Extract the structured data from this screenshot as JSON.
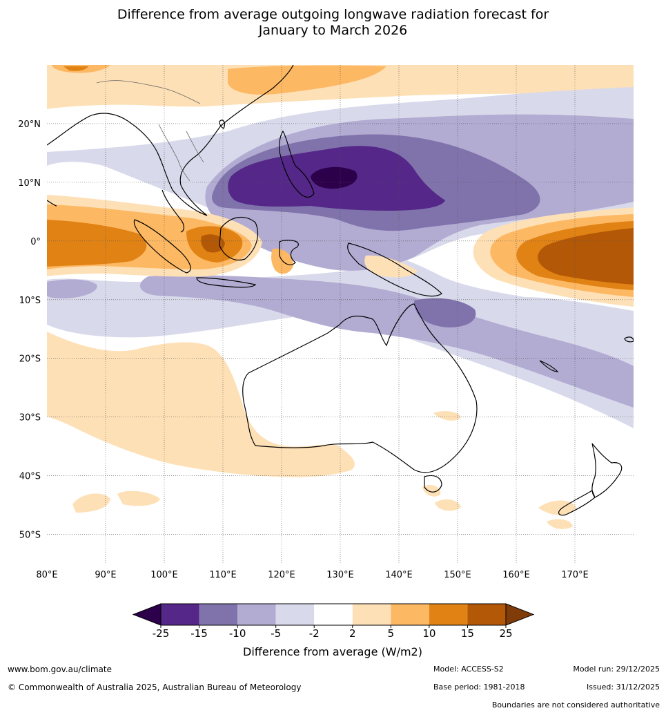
{
  "title": {
    "line1": "Difference from average outgoing longwave radiation forecast for",
    "line2": "January to March 2026"
  },
  "map": {
    "lon_labels": [
      "80°E",
      "90°E",
      "100°E",
      "110°E",
      "120°E",
      "130°E",
      "140°E",
      "150°E",
      "160°E",
      "170°E"
    ],
    "lat_labels": [
      "20°N",
      "10°N",
      "0°",
      "10°S",
      "20°S",
      "30°S",
      "40°S",
      "50°S"
    ],
    "lon_values": [
      80,
      90,
      100,
      110,
      120,
      130,
      140,
      150,
      160,
      170
    ],
    "lat_values": [
      20,
      10,
      0,
      -10,
      -20,
      -30,
      -40,
      -50
    ],
    "lon_range": [
      80,
      180
    ],
    "lat_range": [
      -55,
      30
    ]
  },
  "legend": {
    "title": "Difference from average (W/m2)",
    "ticks": [
      "-25",
      "-15",
      "-10",
      "-5",
      "-2",
      "2",
      "5",
      "10",
      "15",
      "25"
    ],
    "colors": [
      "#2d004b",
      "#542788",
      "#8073ac",
      "#b2abd2",
      "#d8daeb",
      "#ffffff",
      "#fee0b6",
      "#fdb863",
      "#e08214",
      "#b35806",
      "#7f3b08"
    ]
  },
  "footer": {
    "url": "www.bom.gov.au/climate",
    "copyright": "© Commonwealth of Australia 2025, Australian Bureau of Meteorology",
    "model": "Model: ACCESS-S2",
    "base_period": "Base period: 1981-2018",
    "model_run": "Model run: 29/12/2025",
    "issued": "Issued: 31/12/2025",
    "disclaimer": "Boundaries are not considered authoritative"
  }
}
